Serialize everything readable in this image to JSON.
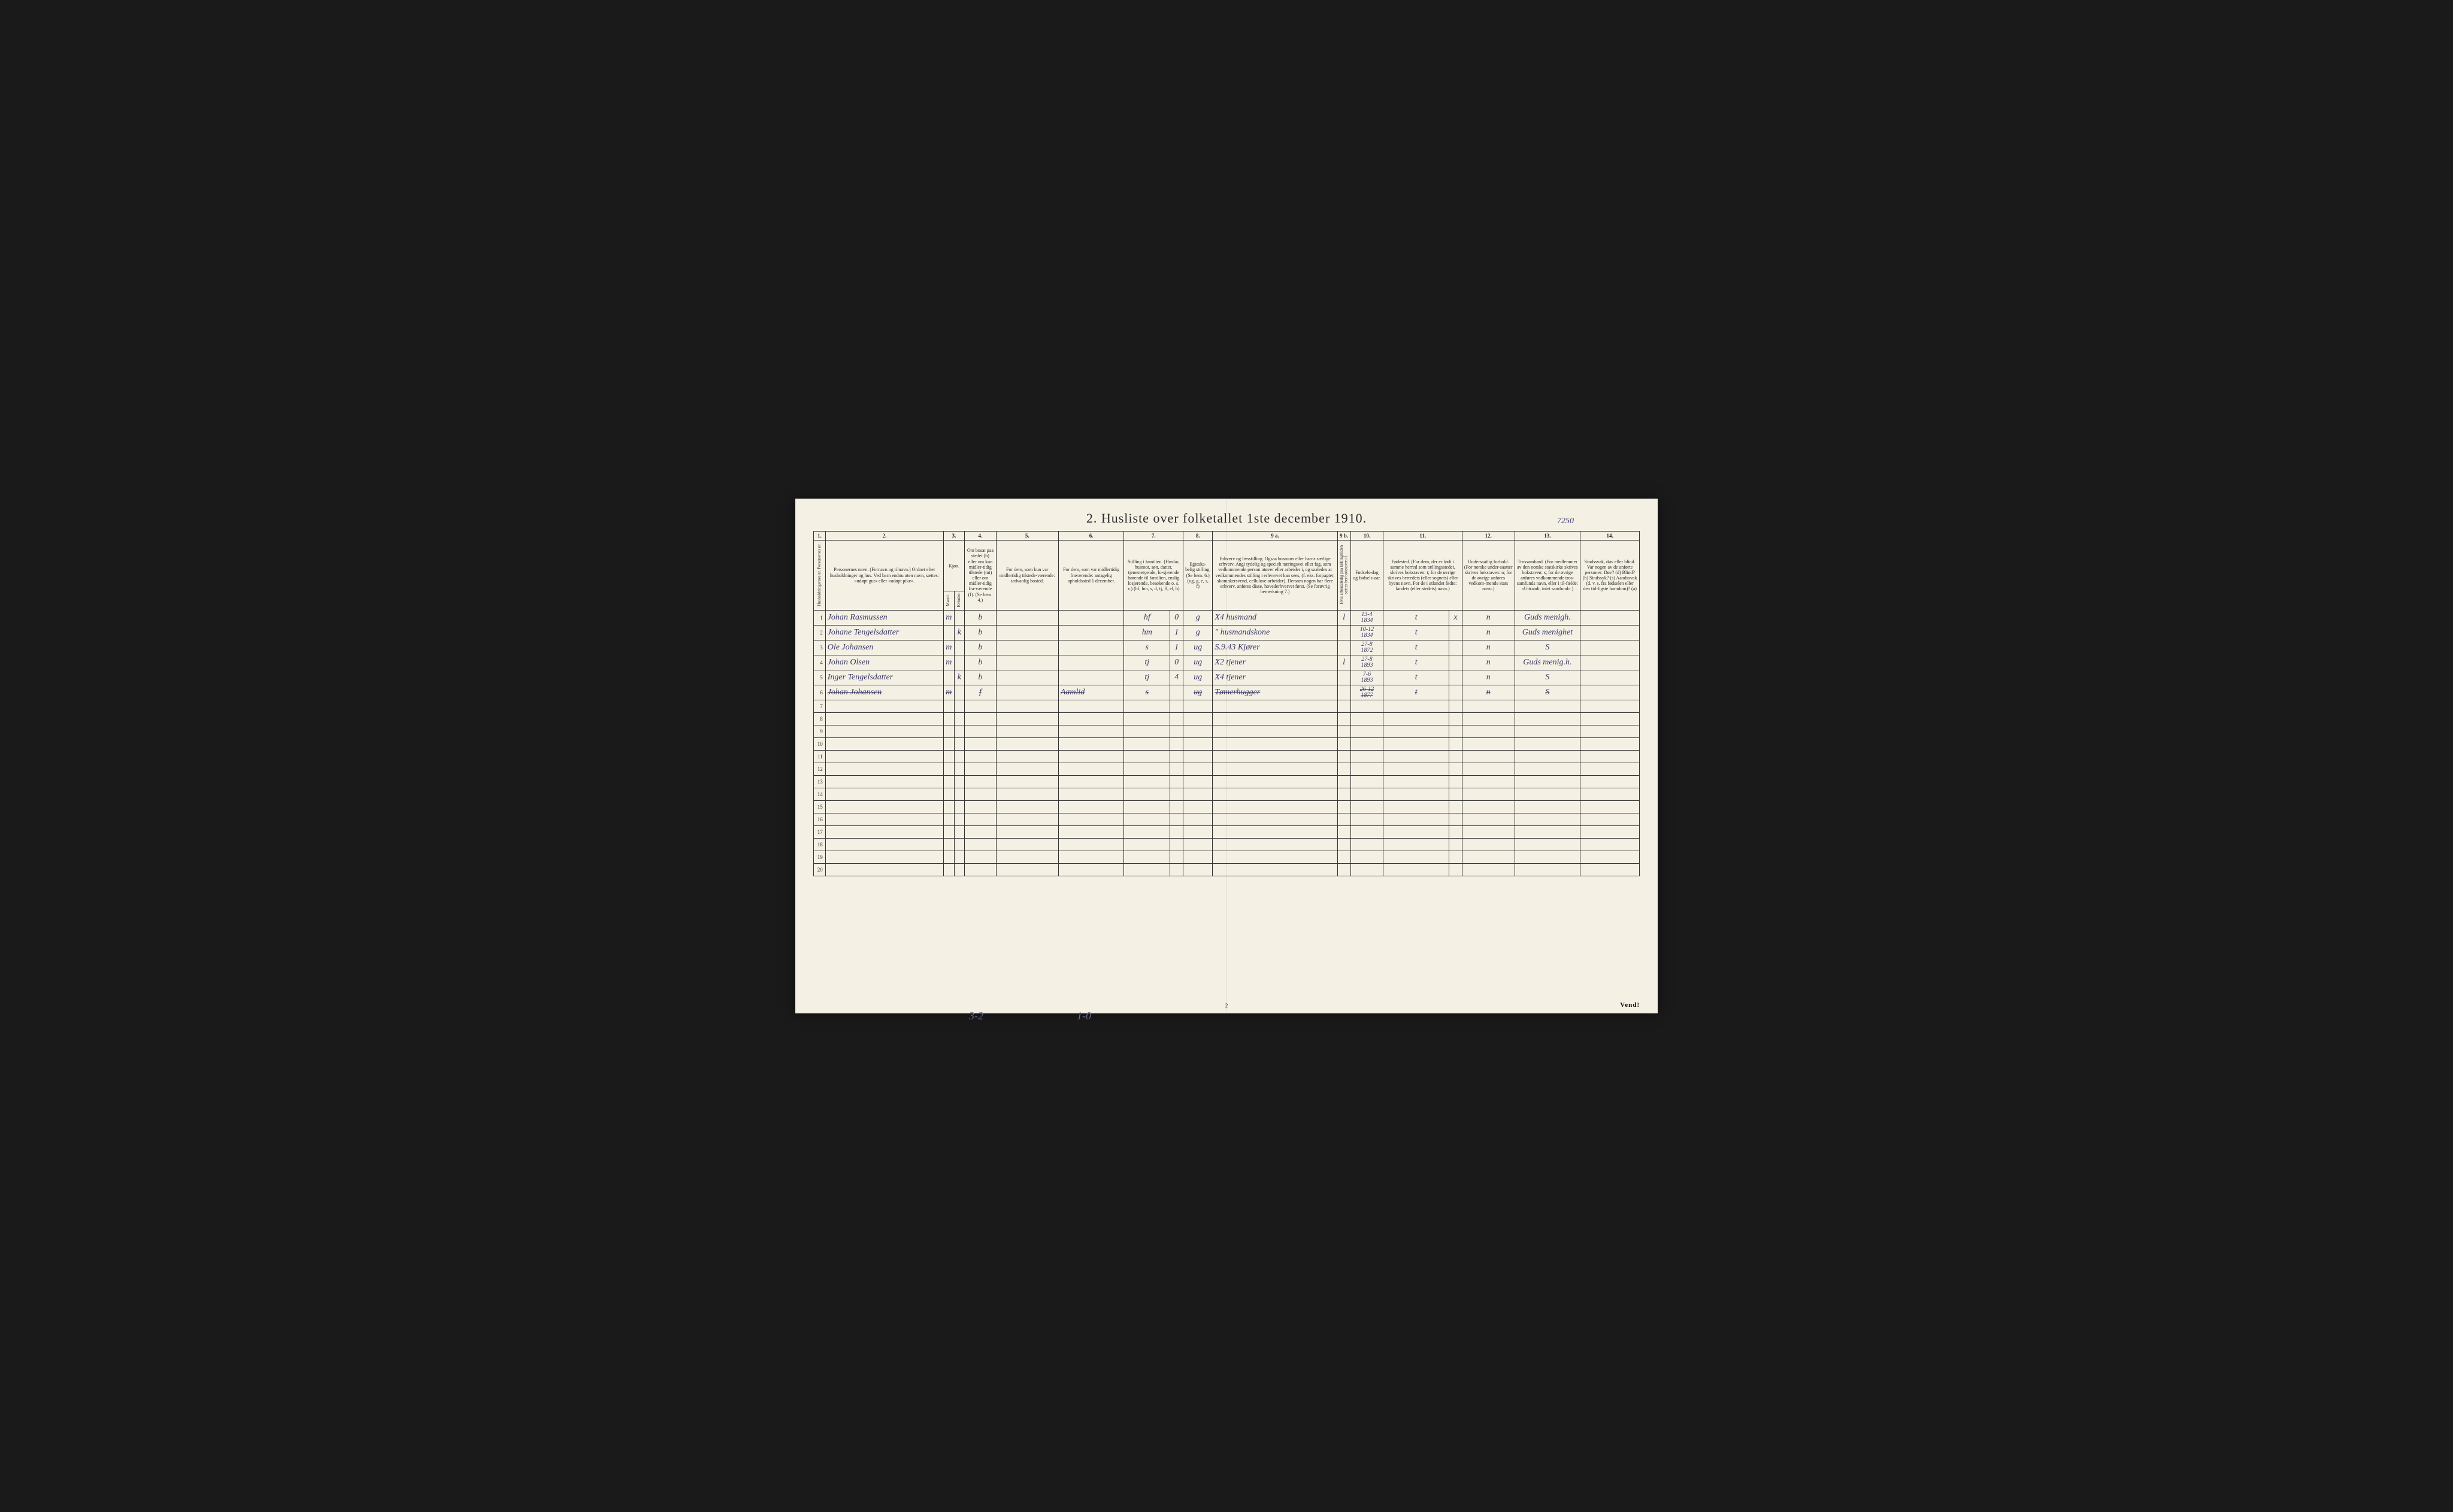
{
  "top_pencil": "7250",
  "title": "2.  Husliste over folketallet 1ste december 1910.",
  "page_number": "2",
  "vend": "Vend!",
  "bottom_left": "3-2",
  "bottom_mid": "1-0",
  "colnums": [
    "1.",
    "2.",
    "3.",
    "4.",
    "5.",
    "6.",
    "7.",
    "8.",
    "9 a.",
    "9 b.",
    "10.",
    "11.",
    "12.",
    "13.",
    "14."
  ],
  "headers": {
    "c1": "Husholdningernes nr.\nPersonernes nr.",
    "c2": "Personernes navn.\n(Fornavn og tilnavn.)\nOrdnet efter husholdninger og hus.\nVed barn endnu uten navn, sættes: «udøpt gut» eller «udøpt pike».",
    "c3": "Kjøn.",
    "c3m": "Mænd.",
    "c3k": "Kvinder.",
    "c4": "Om bosat paa stedet (b) eller om kun midler-tidig tilstede (mt) eller om midler-tidig fra-værende (f). (Se bem. 4.)",
    "c5": "For dem, som kun var midlertidig tilstede-værende:\nsedvanlig bosted.",
    "c6": "For dem, som var midlertidig fraværende:\nantagelig opholdssted 1 december.",
    "c7": "Stilling i familien.\n(Husfar, husmor, søn, datter, tjenestetyende, lo-sjerende hørende til familien, enslig losjerende, besøkende o. s. v.)\n(hf, hm, s, d, tj, fl, el, b)",
    "c8": "Egteska-belig stilling.\n(Se bem. 6.)\n(ug, g, e, s, f)",
    "c9a": "Erhverv og livsstilling.\nOgsaa husmors eller barns særlige erhverv. Angi tydelig og specielt næringsvei eller fag, som vedkommende person utøver eller arbeider i, og saaledes at vedkommendes stilling i erhvervet kan sees, (f. eks. forpagter, skomakersvend, cellulose-arbeider). Dersom nogen har flere erhverv, anføres disse, hovederhvervet først.\n(Se forøvrig bemerkning 7.)",
    "c9b": "Hvis arbeidsledig paa tællingstiden sættes her bokstaven: l.",
    "c10": "Fødsels-dag og fødsels-aar.",
    "c11": "Fødested.\n(For dem, der er født i samme herred som tællingsstedet, skrives bokstaven: t; for de øvrige skrives herredets (eller sognets) eller byens navn. For de i utlandet fødte: landets (eller stedets) navn.)",
    "c12": "Undersaatlig forhold.\n(For norske under-saatter skrives bokstaven: n; for de øvrige anføres vedkom-mende stats navn.)",
    "c13": "Trossamfund.\n(For medlemmer av den norske statskirke skrives bokstaven: s; for de øvrige anføres vedkommende tros-samfunds navn, eller i til-fælde: «Uttraadt, intet samfund».)",
    "c14": "Sindssvak, døv eller blind.\nVar nogen av de anførte personer:\nDøv? (d)\nBlind? (b)\nSindssyk? (s)\nAandssvak (d. v. s. fra fødselen eller den tid-ligste barndom)? (a)"
  },
  "rows": [
    {
      "n": "1",
      "name": "Johan Rasmussen",
      "m": "m",
      "k": "",
      "b": "b",
      "c5": "",
      "c6": "",
      "c7a": "hf",
      "c7b": "0",
      "c8": "g",
      "c9a": "X4  husmand",
      "c9b": "l",
      "c10": "13-4\n1834",
      "c11a": "t",
      "c11b": "x",
      "c12": "n",
      "c13": "Guds menigh.",
      "c14": ""
    },
    {
      "n": "2",
      "name": "Johane Tengelsdatter",
      "m": "",
      "k": "k",
      "b": "b",
      "c5": "",
      "c6": "",
      "c7a": "hm",
      "c7b": "1",
      "c8": "g",
      "c9a": "\"   husmandskone",
      "c9b": "",
      "c10": "10-12\n1834",
      "c11a": "t",
      "c11b": "",
      "c12": "n",
      "c13": "Guds menighet",
      "c14": ""
    },
    {
      "n": "3",
      "name": "Ole Johansen",
      "m": "m",
      "k": "",
      "b": "b",
      "c5": "",
      "c6": "",
      "c7a": "s",
      "c7b": "1",
      "c8": "ug",
      "c9a": "S.9.43 Kjører",
      "c9b": "",
      "c10": "27-8\n1872",
      "c11a": "t",
      "c11b": "",
      "c12": "n",
      "c13": "S",
      "c14": ""
    },
    {
      "n": "4",
      "name": "Johan Olsen",
      "m": "m",
      "k": "",
      "b": "b",
      "c5": "",
      "c6": "",
      "c7a": "tj",
      "c7b": "0",
      "c8": "ug",
      "c9a": "X2   tjener",
      "c9b": "l",
      "c10": "27-8\n1893",
      "c11a": "t",
      "c11b": "",
      "c12": "n",
      "c13": "Guds menig.h.",
      "c14": ""
    },
    {
      "n": "5",
      "name": "Inger Tengelsdatter",
      "m": "",
      "k": "k",
      "b": "b",
      "c5": "",
      "c6": "",
      "c7a": "tj",
      "c7b": "4",
      "c8": "ug",
      "c9a": "X4   tjener",
      "c9b": "",
      "c10": "7-6\n1893",
      "c11a": "t",
      "c11b": "",
      "c12": "n",
      "c13": "S",
      "c14": ""
    },
    {
      "n": "6",
      "name": "Johan Johansen",
      "m": "m",
      "k": "",
      "b": "f",
      "c5": "",
      "c6": "Aamlid",
      "c7a": "s",
      "c7b": "",
      "c8": "ug",
      "c9a": "Tømerhugger",
      "c9b": "",
      "c10": "26-12\n1877",
      "c11a": "t",
      "c11b": "",
      "c12": "n",
      "c13": "S",
      "c14": "",
      "struck": true
    },
    {
      "n": "7"
    },
    {
      "n": "8"
    },
    {
      "n": "9"
    },
    {
      "n": "10"
    },
    {
      "n": "11"
    },
    {
      "n": "12"
    },
    {
      "n": "13"
    },
    {
      "n": "14"
    },
    {
      "n": "15"
    },
    {
      "n": "16"
    },
    {
      "n": "17"
    },
    {
      "n": "18"
    },
    {
      "n": "19"
    },
    {
      "n": "20"
    }
  ]
}
